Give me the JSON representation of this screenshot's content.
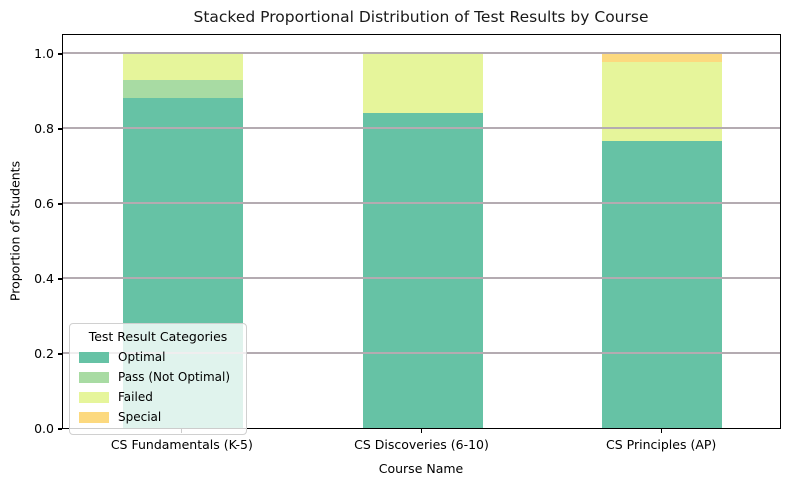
{
  "title": "Stacked Proportional Distribution of Test Results by Course",
  "x_axis": {
    "label": "Course Name"
  },
  "y_axis": {
    "label": "Proportion of Students",
    "ticks": [
      0.0,
      0.2,
      0.4,
      0.6,
      0.8,
      1.0
    ]
  },
  "legend": {
    "title": "Test Result Categories"
  },
  "chart_data": {
    "type": "bar",
    "stacked": true,
    "proportional": true,
    "title": "Stacked Proportional Distribution of Test Results by Course",
    "xlabel": "Course Name",
    "ylabel": "Proportion of Students",
    "categories": [
      "CS Fundamentals (K-5)",
      "CS Discoveries (6-10)",
      "CS Principles (AP)"
    ],
    "series": [
      {
        "name": "Optimal",
        "color": "#66c2a5",
        "values": [
          0.88,
          0.84,
          0.765
        ]
      },
      {
        "name": "Pass (Not Optimal)",
        "color": "#a8dba3",
        "values": [
          0.048,
          0.0,
          0.0
        ]
      },
      {
        "name": "Failed",
        "color": "#e6f59b",
        "values": [
          0.072,
          0.16,
          0.21
        ]
      },
      {
        "name": "Special",
        "color": "#fcd97f",
        "values": [
          0.0,
          0.0,
          0.025
        ]
      }
    ],
    "ylim": [
      0.0,
      1.05
    ],
    "bar_width_fraction": 0.5,
    "grid": "horizontal",
    "grid_color": "#b4abb1",
    "legend_position": "lower left",
    "legend_title": "Test Result Categories"
  }
}
